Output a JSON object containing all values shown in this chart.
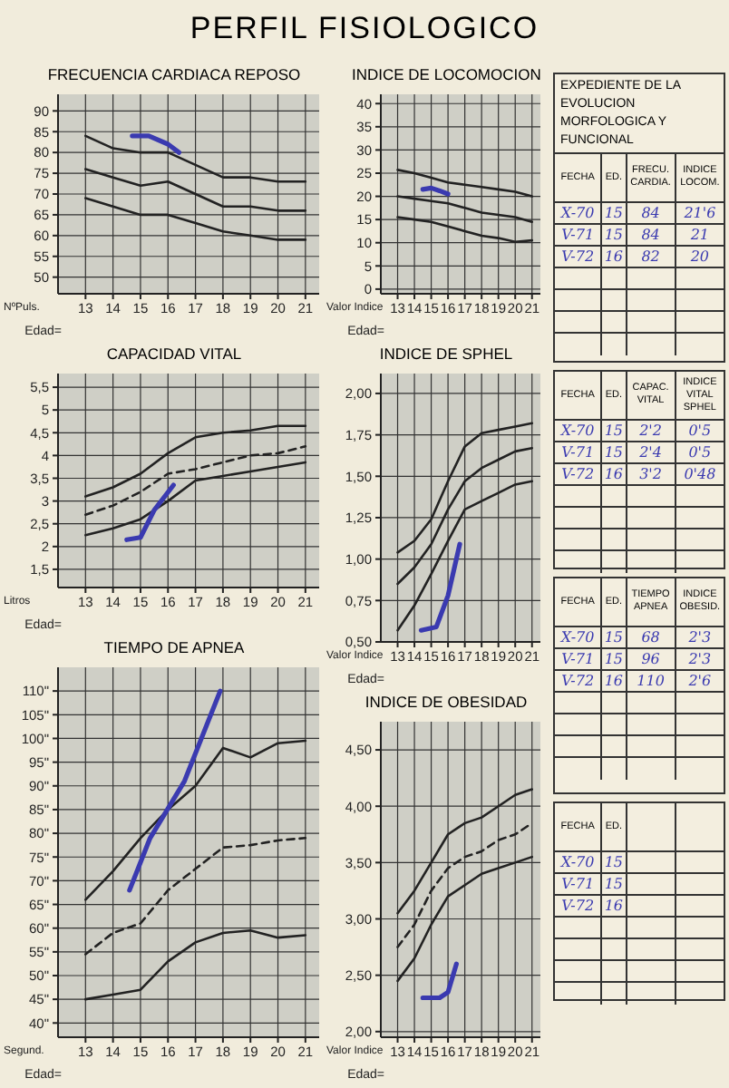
{
  "chart_data": [
    {
      "type": "line",
      "title": "PERFIL FISIOLOGICO",
      "subtitle": "FRECUENCIA CARDIACA REPOSO",
      "xlabel": "Edad=",
      "ylabel": "NºPuls.",
      "x": [
        13,
        14,
        15,
        16,
        17,
        18,
        19,
        20,
        21
      ],
      "xlim": [
        12,
        21.5
      ],
      "xticks": [
        13,
        14,
        15,
        16,
        17,
        18,
        19,
        20,
        21
      ],
      "ylim": [
        46,
        94
      ],
      "yticks": [
        50,
        55,
        60,
        65,
        70,
        75,
        80,
        85,
        90
      ],
      "grid": true,
      "series": [
        {
          "color": "#222222",
          "values": [
            84,
            81,
            80,
            80,
            77,
            74,
            74,
            73,
            73
          ]
        },
        {
          "color": "#222222",
          "values": [
            76,
            74,
            72,
            73,
            70,
            67,
            67,
            66,
            66
          ]
        },
        {
          "color": "#222222",
          "values": [
            69,
            67,
            65,
            65,
            63,
            61,
            60,
            59,
            59
          ]
        },
        {
          "color": "#3a3ab0",
          "x": [
            14.7,
            15.3,
            16,
            16.4
          ],
          "values": [
            84,
            84,
            82,
            80
          ]
        }
      ]
    },
    {
      "type": "line",
      "title": "INDICE DE LOCOMOCION",
      "xlabel": "Edad=",
      "ylabel": "Valor Indice",
      "x": [
        13,
        14,
        15,
        16,
        17,
        18,
        19,
        20,
        21
      ],
      "xlim": [
        12,
        21.5
      ],
      "xticks": [
        13,
        14,
        15,
        16,
        17,
        18,
        19,
        20,
        21
      ],
      "ylim": [
        -1,
        42
      ],
      "yticks": [
        0,
        5,
        10,
        15,
        20,
        25,
        30,
        35,
        40
      ],
      "grid": true,
      "series": [
        {
          "color": "#222222",
          "values": [
            25.7,
            25,
            24,
            23,
            22.5,
            22,
            21.5,
            21,
            20
          ]
        },
        {
          "color": "#222222",
          "values": [
            20,
            19.5,
            19,
            18.5,
            17.5,
            16.5,
            16,
            15.5,
            14.5
          ]
        },
        {
          "color": "#222222",
          "values": [
            15.5,
            15,
            14.5,
            13.5,
            12.5,
            11.5,
            11,
            10.2,
            10.5
          ]
        },
        {
          "color": "#3a3ab0",
          "x": [
            14.5,
            15,
            15.5,
            16
          ],
          "values": [
            21.5,
            21.8,
            21.2,
            20.5
          ]
        }
      ]
    },
    {
      "type": "line",
      "title": "CAPACIDAD VITAL",
      "xlabel": "Edad=",
      "ylabel": "Litros",
      "x": [
        13,
        14,
        15,
        16,
        17,
        18,
        19,
        20,
        21
      ],
      "xlim": [
        12,
        21.5
      ],
      "xticks": [
        13,
        14,
        15,
        16,
        17,
        18,
        19,
        20,
        21
      ],
      "ylim": [
        1.1,
        5.8
      ],
      "yticks": [
        {
          "value": 1.5,
          "label": "1,5"
        },
        2,
        {
          "value": 2.5,
          "label": "2,5"
        },
        3,
        {
          "value": 3.5,
          "label": "3,5"
        },
        4,
        {
          "value": 4.5,
          "label": "4,5"
        },
        5,
        {
          "value": 5.5,
          "label": "5,5"
        }
      ],
      "grid": true,
      "series": [
        {
          "color": "#222222",
          "values": [
            3.1,
            3.3,
            3.6,
            4.05,
            4.4,
            4.5,
            4.55,
            4.65,
            4.65
          ]
        },
        {
          "color": "#222222",
          "line_style": "dashed",
          "values": [
            2.7,
            2.9,
            3.2,
            3.6,
            3.7,
            3.85,
            4,
            4.05,
            4.2
          ]
        },
        {
          "color": "#222222",
          "values": [
            2.25,
            2.4,
            2.6,
            3,
            3.45,
            3.55,
            3.65,
            3.75,
            3.85
          ]
        },
        {
          "color": "#3a3ab0",
          "x": [
            14.5,
            15,
            15.5,
            16.2
          ],
          "values": [
            2.15,
            2.2,
            2.8,
            3.35
          ]
        }
      ]
    },
    {
      "type": "line",
      "title": "INDICE DE SPHEL",
      "xlabel": "Edad=",
      "ylabel": "Valor Indice",
      "x": [
        13,
        14,
        15,
        16,
        17,
        18,
        19,
        20,
        21
      ],
      "xlim": [
        12,
        21.5
      ],
      "xticks": [
        13,
        14,
        15,
        16,
        17,
        18,
        19,
        20,
        21
      ],
      "ylim": [
        0.5,
        2.12
      ],
      "yticks": [
        {
          "value": 0.5,
          "label": "0,50"
        },
        {
          "value": 0.75,
          "label": "0,75"
        },
        {
          "value": 1,
          "label": "1,00"
        },
        {
          "value": 1.25,
          "label": "1,25"
        },
        {
          "value": 1.5,
          "label": "1,50"
        },
        {
          "value": 1.75,
          "label": "1,75"
        },
        {
          "value": 2,
          "label": "2,00"
        }
      ],
      "grid": true,
      "series": [
        {
          "color": "#222222",
          "values": [
            1.04,
            1.11,
            1.24,
            1.47,
            1.68,
            1.76,
            1.78,
            1.8,
            1.82
          ]
        },
        {
          "color": "#222222",
          "values": [
            0.85,
            0.95,
            1.09,
            1.3,
            1.47,
            1.55,
            1.6,
            1.65,
            1.67
          ]
        },
        {
          "color": "#222222",
          "values": [
            0.57,
            0.72,
            0.91,
            1.11,
            1.3,
            1.35,
            1.4,
            1.45,
            1.47
          ]
        },
        {
          "color": "#3a3ab0",
          "x": [
            14.4,
            15.3,
            16,
            16.7
          ],
          "values": [
            0.57,
            0.59,
            0.78,
            1.09
          ]
        }
      ]
    },
    {
      "type": "line",
      "title": "TIEMPO DE APNEA",
      "xlabel": "Edad=",
      "ylabel": "Segund.",
      "x": [
        13,
        14,
        15,
        16,
        17,
        18,
        19,
        20,
        21
      ],
      "xlim": [
        12,
        21.5
      ],
      "xticks": [
        13,
        14,
        15,
        16,
        17,
        18,
        19,
        20,
        21
      ],
      "ylim": [
        37,
        115
      ],
      "yticks": [
        {
          "value": 40,
          "label": "40\""
        },
        {
          "value": 45,
          "label": "45\""
        },
        {
          "value": 50,
          "label": "50\""
        },
        {
          "value": 55,
          "label": "55\""
        },
        {
          "value": 60,
          "label": "60\""
        },
        {
          "value": 65,
          "label": "65\""
        },
        {
          "value": 70,
          "label": "70\""
        },
        {
          "value": 75,
          "label": "75\""
        },
        {
          "value": 80,
          "label": "80\""
        },
        {
          "value": 85,
          "label": "85\""
        },
        {
          "value": 90,
          "label": "90\""
        },
        {
          "value": 95,
          "label": "95\""
        },
        {
          "value": 100,
          "label": "100\""
        },
        {
          "value": 105,
          "label": "105\""
        },
        {
          "value": 110,
          "label": "110\""
        }
      ],
      "grid": true,
      "series": [
        {
          "color": "#222222",
          "values": [
            66,
            72,
            79,
            85,
            90,
            98,
            96,
            99,
            99.5
          ]
        },
        {
          "color": "#222222",
          "line_style": "dashed",
          "values": [
            54.5,
            59,
            61,
            68,
            72.5,
            77,
            77.5,
            78.5,
            79
          ]
        },
        {
          "color": "#222222",
          "values": [
            45,
            46,
            47,
            53,
            57,
            59,
            59.5,
            58,
            58.5
          ]
        },
        {
          "color": "#3a3ab0",
          "x": [
            14.6,
            15.35,
            16.6,
            17.9
          ],
          "values": [
            68,
            79,
            91,
            110
          ]
        }
      ]
    },
    {
      "type": "line",
      "title": "INDICE DE OBESIDAD",
      "xlabel": "Edad=",
      "ylabel": "Valor Indice",
      "x": [
        13,
        14,
        15,
        16,
        17,
        18,
        19,
        20,
        21
      ],
      "xlim": [
        12,
        21.5
      ],
      "xticks": [
        13,
        14,
        15,
        16,
        17,
        18,
        19,
        20,
        21
      ],
      "ylim": [
        1.95,
        4.75
      ],
      "yticks": [
        {
          "value": 2,
          "label": "2,00"
        },
        {
          "value": 2.5,
          "label": "2,50"
        },
        {
          "value": 3,
          "label": "3,00"
        },
        {
          "value": 3.5,
          "label": "3,50"
        },
        {
          "value": 4,
          "label": "4,00"
        },
        {
          "value": 4.5,
          "label": "4,50"
        }
      ],
      "grid": true,
      "series": [
        {
          "color": "#222222",
          "values": [
            3.05,
            3.25,
            3.5,
            3.75,
            3.85,
            3.9,
            4,
            4.1,
            4.15
          ]
        },
        {
          "color": "#222222",
          "line_style": "dashed",
          "values": [
            2.75,
            2.95,
            3.25,
            3.45,
            3.55,
            3.6,
            3.7,
            3.75,
            3.85
          ]
        },
        {
          "color": "#222222",
          "values": [
            2.45,
            2.65,
            2.95,
            3.2,
            3.3,
            3.4,
            3.45,
            3.5,
            3.55
          ]
        },
        {
          "color": "#3a3ab0",
          "x": [
            14.5,
            15.5,
            16,
            16.5
          ],
          "values": [
            2.3,
            2.3,
            2.35,
            2.6
          ]
        }
      ]
    },
    {
      "type": "other",
      "title": "EXPEDIENTE DE LA EVOLUCION MORFOLOGICA Y FUNCIONAL",
      "categories": [
        "FECHA",
        "ED.",
        "FRECU. CARDIA.",
        "INDICE LOCOM."
      ],
      "color": "#3a3ab0",
      "cell_labels": [
        [
          "X-70",
          "15",
          "84",
          "21'6"
        ],
        [
          "V-71",
          "15",
          "84",
          "21"
        ],
        [
          "V-72",
          "16",
          "82",
          "20"
        ]
      ]
    },
    {
      "type": "other",
      "categories": [
        "FECHA",
        "ED.",
        "CAPAC. VITAL",
        "INDICE VITAL SPHEL"
      ],
      "color": "#3a3ab0",
      "cell_labels": [
        [
          "X-70",
          "15",
          "2'2",
          "0'5"
        ],
        [
          "V-71",
          "15",
          "2'4",
          "0'5"
        ],
        [
          "V-72",
          "16",
          "3'2",
          "0'48"
        ]
      ]
    },
    {
      "type": "other",
      "categories": [
        "FECHA",
        "ED.",
        "TIEMPO APNEA",
        "INDICE OBESID."
      ],
      "color": "#3a3ab0",
      "cell_labels": [
        [
          "X-70",
          "15",
          "68",
          "2'3"
        ],
        [
          "V-71",
          "15",
          "96",
          "2'3"
        ],
        [
          "V-72",
          "16",
          "110",
          "2'6"
        ]
      ]
    },
    {
      "type": "other",
      "categories": [
        "FECHA",
        "ED.",
        null,
        null
      ],
      "color": "#3a3ab0",
      "cell_labels": [
        [
          "X-70",
          "15",
          null,
          null
        ],
        [
          "V-71",
          "15",
          null,
          null
        ],
        [
          "V-72",
          "16",
          null,
          null
        ]
      ]
    }
  ]
}
